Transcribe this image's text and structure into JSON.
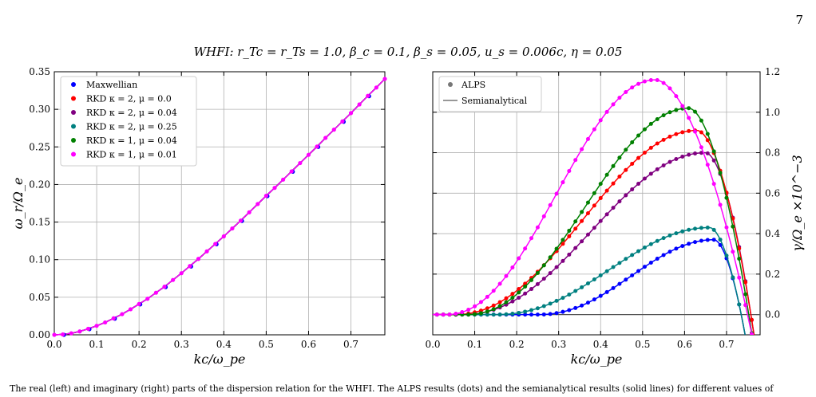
{
  "page_number": "7",
  "suptitle": "WHFI: r_Tc = r_Ts = 1.0, β_c = 0.1, β_s = 0.05, u_s = 0.006c, η = 0.05",
  "bottom_text": "The real (left) and imaginary (right) parts of the dispersion relation for the WHFI. The ALPS results (dots) and the semianalytical results (solid lines) for different values of",
  "colors": {
    "maxwellian": "#0000ff",
    "rkd_k2_mu0": "#ff0000",
    "rkd_k2_mu004": "#800080",
    "rkd_k2_mu025": "#008080",
    "rkd_k1_mu004": "#008000",
    "rkd_k1_mu001": "#ff00ff",
    "grid": "#b0b0b0",
    "zero_line": "#555555"
  },
  "chart_data": [
    {
      "type": "line",
      "panel": "left",
      "xlabel": "kc/ω_pe",
      "ylabel": "ω_r/Ω_e",
      "xlim": [
        0.0,
        0.78
      ],
      "ylim": [
        0.0,
        0.35
      ],
      "xticks": [
        "0.0",
        "0.1",
        "0.2",
        "0.3",
        "0.4",
        "0.5",
        "0.6",
        "0.7"
      ],
      "yticks": [
        "0.00",
        "0.05",
        "0.10",
        "0.15",
        "0.20",
        "0.25",
        "0.30",
        "0.35"
      ],
      "grid": true,
      "legend_position": "top-left",
      "legend": [
        "Maxwellian",
        "RKD κ = 2, μ = 0.0",
        "RKD κ = 2, μ = 0.04",
        "RKD κ = 2, μ = 0.25",
        "RKD κ = 1, μ = 0.04",
        "RKD κ = 1, μ = 0.01"
      ],
      "x": [
        0.0,
        0.02,
        0.04,
        0.06,
        0.08,
        0.1,
        0.12,
        0.14,
        0.16,
        0.18,
        0.2,
        0.22,
        0.24,
        0.26,
        0.28,
        0.3,
        0.32,
        0.34,
        0.36,
        0.38,
        0.4,
        0.42,
        0.44,
        0.46,
        0.48,
        0.5,
        0.52,
        0.54,
        0.56,
        0.58,
        0.6,
        0.62,
        0.64,
        0.66,
        0.68,
        0.7,
        0.72,
        0.74,
        0.76,
        0.78
      ],
      "y": [
        0.0,
        0.0005,
        0.002,
        0.0045,
        0.008,
        0.012,
        0.0165,
        0.022,
        0.0275,
        0.034,
        0.041,
        0.048,
        0.056,
        0.064,
        0.073,
        0.082,
        0.0915,
        0.101,
        0.111,
        0.121,
        0.131,
        0.1415,
        0.152,
        0.163,
        0.174,
        0.185,
        0.1955,
        0.2065,
        0.2175,
        0.2285,
        0.2395,
        0.2505,
        0.262,
        0.273,
        0.284,
        0.295,
        0.3065,
        0.318,
        0.329,
        0.3405
      ]
    },
    {
      "type": "line",
      "panel": "right",
      "xlabel": "kc/ω_pe",
      "ylabel": "γ/Ω_e ×10^−3",
      "xlim": [
        0.0,
        0.78
      ],
      "ylim": [
        -0.1,
        1.2
      ],
      "xticks": [
        "0.0",
        "0.1",
        "0.2",
        "0.3",
        "0.4",
        "0.5",
        "0.6",
        "0.7"
      ],
      "yticks": [
        "0.0",
        "0.2",
        "0.4",
        "0.6",
        "0.8",
        "1.0",
        "1.2"
      ],
      "grid": true,
      "legend_position": "top-left",
      "legend": [
        "ALPS",
        "Semianalytical"
      ],
      "series": [
        {
          "key": "maxwellian",
          "peak_x": 0.67,
          "peak_y": 0.37,
          "start_x": 0.25,
          "zero_x": 0.735
        },
        {
          "key": "rkd_k2_mu025",
          "peak_x": 0.66,
          "peak_y": 0.43,
          "start_x": 0.15,
          "zero_x": 0.735
        },
        {
          "key": "rkd_k2_mu004",
          "peak_x": 0.65,
          "peak_y": 0.8,
          "start_x": 0.07,
          "zero_x": 0.758
        },
        {
          "key": "rkd_k2_mu0",
          "peak_x": 0.63,
          "peak_y": 0.91,
          "start_x": 0.05,
          "zero_x": 0.758
        },
        {
          "key": "rkd_k1_mu004",
          "peak_x": 0.61,
          "peak_y": 1.02,
          "start_x": 0.08,
          "zero_x": 0.753
        },
        {
          "key": "rkd_k1_mu001",
          "peak_x": 0.53,
          "peak_y": 1.16,
          "start_x": 0.03,
          "zero_x": 0.75
        }
      ]
    }
  ]
}
